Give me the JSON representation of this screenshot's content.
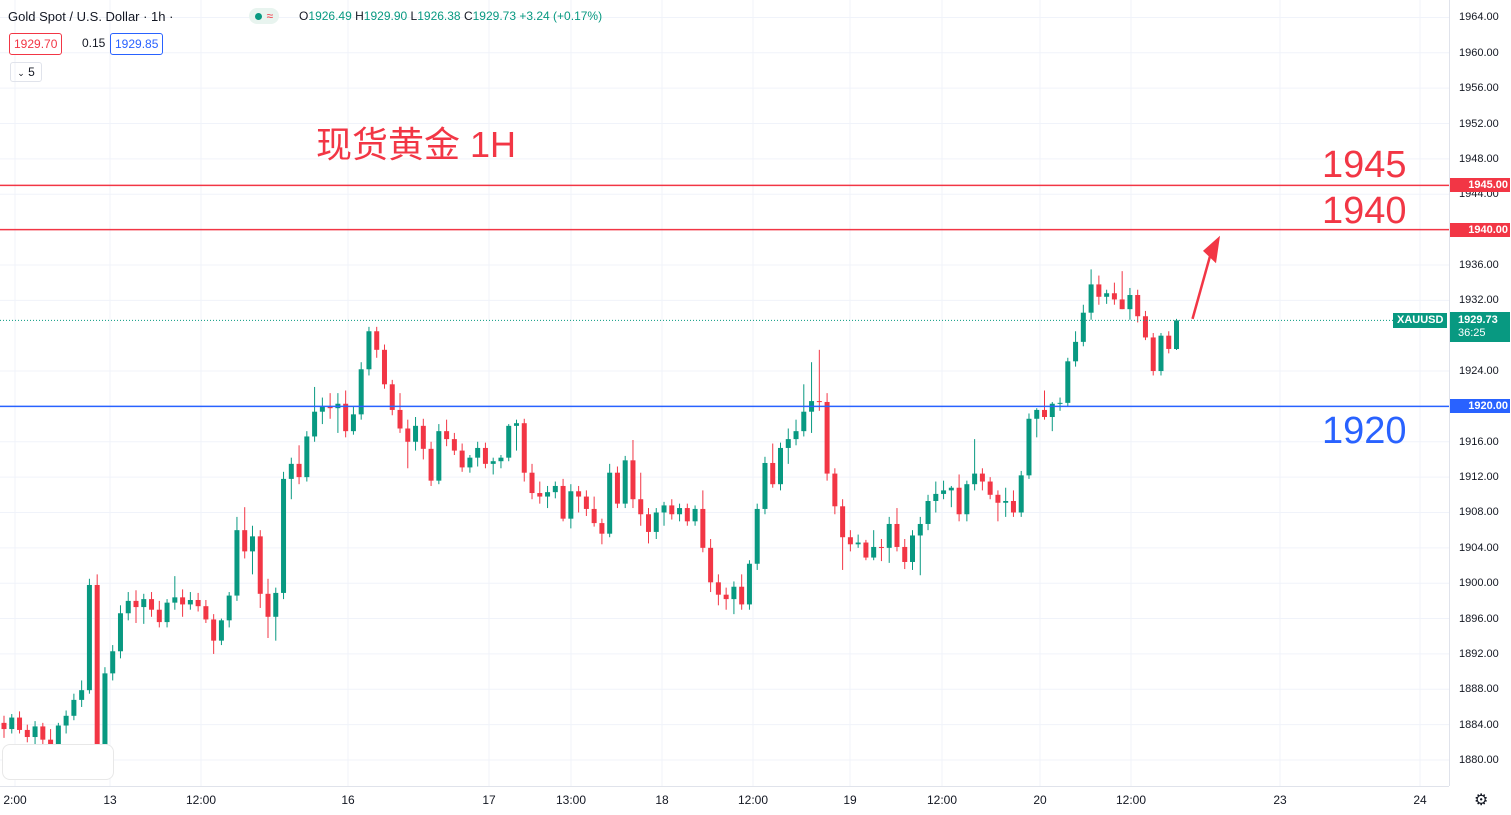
{
  "header": {
    "title": "Gold Spot / U.S. Dollar · 1h ·",
    "ohlc": [
      {
        "k": "O",
        "v": "1926.49"
      },
      {
        "k": "H",
        "v": "1929.90"
      },
      {
        "k": "L",
        "v": "1926.38"
      },
      {
        "k": "C",
        "v": "1929.73"
      },
      {
        "k": "",
        "v": "+3.24 (+0.17%)"
      }
    ],
    "wave_icon": "≈",
    "sell_price": "1929.70",
    "spread": "0.15",
    "buy_price": "1929.85",
    "collapse_label": "5",
    "collapse_icon": "chevron-down-icon"
  },
  "annotations": {
    "title": "现货黄金 1H",
    "level_1945": "1945",
    "level_1940": "1940",
    "level_1920": "1920"
  },
  "colors": {
    "up": "#089981",
    "down": "#f23645",
    "resistance": "#f23645",
    "support": "#2962ff",
    "grid": "#f0f3fa"
  },
  "price_axis": {
    "ticks": [
      "1964.00",
      "1960.00",
      "1956.00",
      "1952.00",
      "1948.00",
      "1944.00",
      "1936.00",
      "1932.00",
      "1924.00",
      "1916.00",
      "1912.00",
      "1908.00",
      "1904.00",
      "1900.00",
      "1896.00",
      "1892.00",
      "1888.00",
      "1884.00",
      "1880.00"
    ],
    "tick_values": [
      1964,
      1960,
      1956,
      1952,
      1948,
      1944,
      1936,
      1932,
      1924,
      1916,
      1912,
      1908,
      1904,
      1900,
      1896,
      1892,
      1888,
      1884,
      1880
    ],
    "labels": [
      {
        "text": "1945.00",
        "value": 1945,
        "color": "#f23645"
      },
      {
        "text": "1940.00",
        "value": 1940,
        "color": "#f23645"
      },
      {
        "text": "1920.00",
        "value": 1920,
        "color": "#2962ff"
      }
    ],
    "current": {
      "symbol": "XAUUSD",
      "price": "1929.73",
      "countdown": "36:25",
      "value": 1929.73
    }
  },
  "time_axis": {
    "ticks": [
      "2:00",
      "13",
      "12:00",
      "16",
      "17",
      "13:00",
      "18",
      "12:00",
      "19",
      "12:00",
      "20",
      "12:00",
      "23",
      "24"
    ]
  },
  "settings_icon": "gear-icon",
  "chart_data": {
    "type": "candlestick",
    "symbol": "Gold Spot / U.S. Dollar",
    "interval": "1h",
    "ylim": [
      1877,
      1965
    ],
    "horizontal_lines": [
      1945,
      1940,
      1920
    ],
    "candles": [
      [
        1884.2,
        1885.0,
        1882.5,
        1883.5
      ],
      [
        1883.5,
        1885.2,
        1883.0,
        1884.8
      ],
      [
        1884.8,
        1885.5,
        1883.0,
        1883.4
      ],
      [
        1883.4,
        1884.0,
        1882.0,
        1882.6
      ],
      [
        1882.6,
        1884.4,
        1881.5,
        1883.8
      ],
      [
        1883.8,
        1884.2,
        1881.8,
        1882.3
      ],
      [
        1882.3,
        1883.5,
        1881.4,
        1881.8
      ],
      [
        1881.8,
        1884.2,
        1881.5,
        1883.9
      ],
      [
        1883.9,
        1885.6,
        1883.0,
        1885.0
      ],
      [
        1885.0,
        1887.5,
        1884.5,
        1886.8
      ],
      [
        1886.8,
        1889.0,
        1886.0,
        1887.9
      ],
      [
        1887.9,
        1900.5,
        1887.5,
        1899.8
      ],
      [
        1899.8,
        1901.0,
        1880.5,
        1881.5
      ],
      [
        1881.5,
        1890.5,
        1880.8,
        1889.8
      ],
      [
        1889.8,
        1893.0,
        1889.0,
        1892.3
      ],
      [
        1892.3,
        1897.5,
        1891.5,
        1896.6
      ],
      [
        1896.6,
        1899.0,
        1895.8,
        1898.0
      ],
      [
        1898.0,
        1899.2,
        1895.5,
        1897.3
      ],
      [
        1897.3,
        1898.8,
        1895.4,
        1898.2
      ],
      [
        1898.2,
        1899.0,
        1896.2,
        1897.0
      ],
      [
        1897.0,
        1898.0,
        1895.0,
        1895.6
      ],
      [
        1895.6,
        1898.2,
        1895.0,
        1897.8
      ],
      [
        1897.8,
        1900.8,
        1897.0,
        1898.4
      ],
      [
        1898.4,
        1899.3,
        1896.2,
        1897.6
      ],
      [
        1897.6,
        1899.0,
        1897.0,
        1898.1
      ],
      [
        1898.1,
        1898.9,
        1896.8,
        1897.4
      ],
      [
        1897.4,
        1898.1,
        1895.5,
        1895.9
      ],
      [
        1895.9,
        1896.5,
        1892.0,
        1893.5
      ],
      [
        1893.5,
        1896.0,
        1893.0,
        1895.8
      ],
      [
        1895.8,
        1899.0,
        1895.0,
        1898.6
      ],
      [
        1898.6,
        1907.5,
        1898.0,
        1906.0
      ],
      [
        1906.0,
        1908.6,
        1902.8,
        1903.6
      ],
      [
        1903.6,
        1906.5,
        1901.0,
        1905.3
      ],
      [
        1905.3,
        1906.0,
        1897.2,
        1898.8
      ],
      [
        1898.8,
        1900.5,
        1893.8,
        1896.2
      ],
      [
        1896.2,
        1899.5,
        1893.5,
        1898.9
      ],
      [
        1898.9,
        1912.6,
        1898.2,
        1911.8
      ],
      [
        1911.8,
        1914.2,
        1909.5,
        1913.5
      ],
      [
        1913.5,
        1915.6,
        1911.2,
        1912.0
      ],
      [
        1912.0,
        1917.2,
        1911.5,
        1916.6
      ],
      [
        1916.6,
        1922.2,
        1916.0,
        1919.4
      ],
      [
        1919.4,
        1921.0,
        1918.0,
        1920.0
      ],
      [
        1920.0,
        1921.5,
        1918.6,
        1919.8
      ],
      [
        1919.8,
        1921.5,
        1917.0,
        1920.3
      ],
      [
        1920.3,
        1921.8,
        1916.5,
        1917.2
      ],
      [
        1917.2,
        1920.0,
        1916.8,
        1919.1
      ],
      [
        1919.1,
        1925.0,
        1918.5,
        1924.2
      ],
      [
        1924.2,
        1929.0,
        1923.5,
        1928.5
      ],
      [
        1928.5,
        1929.0,
        1925.5,
        1926.4
      ],
      [
        1926.4,
        1927.0,
        1922.0,
        1922.5
      ],
      [
        1922.5,
        1923.0,
        1919.0,
        1919.6
      ],
      [
        1919.6,
        1921.5,
        1917.0,
        1917.5
      ],
      [
        1917.5,
        1918.5,
        1913.0,
        1916.0
      ],
      [
        1916.0,
        1918.8,
        1915.0,
        1917.8
      ],
      [
        1917.8,
        1918.6,
        1914.0,
        1915.2
      ],
      [
        1915.2,
        1916.0,
        1911.0,
        1911.6
      ],
      [
        1911.6,
        1918.0,
        1911.2,
        1917.2
      ],
      [
        1917.2,
        1918.5,
        1915.5,
        1916.3
      ],
      [
        1916.3,
        1917.0,
        1914.5,
        1915.0
      ],
      [
        1915.0,
        1915.8,
        1912.6,
        1913.1
      ],
      [
        1913.1,
        1914.5,
        1912.5,
        1914.2
      ],
      [
        1914.2,
        1916.0,
        1913.2,
        1915.3
      ],
      [
        1915.3,
        1915.9,
        1913.0,
        1913.5
      ],
      [
        1913.5,
        1914.2,
        1912.3,
        1913.8
      ],
      [
        1913.8,
        1914.5,
        1913.0,
        1914.2
      ],
      [
        1914.2,
        1918.0,
        1913.8,
        1917.8
      ],
      [
        1917.8,
        1918.5,
        1915.0,
        1918.1
      ],
      [
        1918.1,
        1918.6,
        1911.5,
        1912.5
      ],
      [
        1912.5,
        1913.5,
        1909.5,
        1910.2
      ],
      [
        1910.2,
        1911.5,
        1909.0,
        1909.8
      ],
      [
        1909.8,
        1911.0,
        1908.5,
        1910.3
      ],
      [
        1910.3,
        1911.5,
        1909.6,
        1911.0
      ],
      [
        1911.0,
        1911.8,
        1907.0,
        1907.3
      ],
      [
        1907.3,
        1911.2,
        1906.2,
        1910.4
      ],
      [
        1910.4,
        1911.0,
        1908.0,
        1909.8
      ],
      [
        1909.8,
        1910.5,
        1907.6,
        1908.4
      ],
      [
        1908.4,
        1909.8,
        1906.4,
        1906.8
      ],
      [
        1906.8,
        1907.3,
        1904.4,
        1905.6
      ],
      [
        1905.6,
        1913.5,
        1905.2,
        1912.5
      ],
      [
        1912.5,
        1913.2,
        1908.5,
        1909.0
      ],
      [
        1909.0,
        1914.4,
        1908.5,
        1913.9
      ],
      [
        1913.9,
        1916.2,
        1908.5,
        1909.5
      ],
      [
        1909.5,
        1912.5,
        1906.5,
        1907.8
      ],
      [
        1907.8,
        1908.5,
        1904.5,
        1905.8
      ],
      [
        1905.8,
        1908.5,
        1905.0,
        1908.0
      ],
      [
        1908.0,
        1909.2,
        1906.5,
        1908.8
      ],
      [
        1908.8,
        1909.5,
        1907.2,
        1907.8
      ],
      [
        1907.8,
        1909.0,
        1907.0,
        1908.5
      ],
      [
        1908.5,
        1909.0,
        1906.5,
        1907.0
      ],
      [
        1907.0,
        1908.8,
        1906.5,
        1908.4
      ],
      [
        1908.4,
        1910.5,
        1903.5,
        1904.0
      ],
      [
        1904.0,
        1905.0,
        1899.0,
        1900.1
      ],
      [
        1900.1,
        1901.0,
        1897.5,
        1898.7
      ],
      [
        1898.7,
        1899.5,
        1897.0,
        1898.2
      ],
      [
        1898.2,
        1900.2,
        1896.5,
        1899.6
      ],
      [
        1899.6,
        1901.0,
        1897.0,
        1897.6
      ],
      [
        1897.6,
        1902.6,
        1897.0,
        1902.2
      ],
      [
        1902.2,
        1909.0,
        1901.5,
        1908.4
      ],
      [
        1908.4,
        1914.3,
        1907.8,
        1913.6
      ],
      [
        1913.6,
        1915.8,
        1910.8,
        1911.2
      ],
      [
        1911.2,
        1915.9,
        1910.5,
        1915.3
      ],
      [
        1915.3,
        1917.5,
        1913.5,
        1916.3
      ],
      [
        1916.3,
        1918.5,
        1915.6,
        1917.2
      ],
      [
        1917.2,
        1922.5,
        1916.6,
        1919.4
      ],
      [
        1919.4,
        1925.0,
        1917.0,
        1920.6
      ],
      [
        1920.6,
        1926.4,
        1919.5,
        1920.5
      ],
      [
        1920.5,
        1921.5,
        1911.6,
        1912.4
      ],
      [
        1912.4,
        1913.0,
        1907.8,
        1908.7
      ],
      [
        1908.7,
        1909.5,
        1901.5,
        1905.2
      ],
      [
        1905.2,
        1906.0,
        1903.6,
        1904.4
      ],
      [
        1904.4,
        1905.5,
        1904.0,
        1904.6
      ],
      [
        1904.6,
        1904.9,
        1902.6,
        1902.9
      ],
      [
        1902.9,
        1906.0,
        1902.6,
        1904.1
      ],
      [
        1904.1,
        1905.0,
        1902.5,
        1904.0
      ],
      [
        1904.0,
        1907.5,
        1902.3,
        1906.7
      ],
      [
        1906.7,
        1908.5,
        1903.6,
        1904.1
      ],
      [
        1904.1,
        1905.0,
        1901.6,
        1902.4
      ],
      [
        1902.4,
        1906.0,
        1901.5,
        1905.4
      ],
      [
        1905.4,
        1907.5,
        1900.9,
        1906.7
      ],
      [
        1906.7,
        1910.0,
        1906.0,
        1909.3
      ],
      [
        1909.3,
        1911.5,
        1908.0,
        1910.1
      ],
      [
        1910.1,
        1911.6,
        1909.5,
        1910.5
      ],
      [
        1910.5,
        1911.0,
        1908.6,
        1910.8
      ],
      [
        1910.8,
        1912.3,
        1907.0,
        1907.8
      ],
      [
        1907.8,
        1911.6,
        1907.0,
        1911.2
      ],
      [
        1911.2,
        1916.3,
        1910.5,
        1912.4
      ],
      [
        1912.4,
        1913.0,
        1910.5,
        1911.5
      ],
      [
        1911.5,
        1912.0,
        1909.5,
        1910.0
      ],
      [
        1910.0,
        1910.5,
        1907.0,
        1909.1
      ],
      [
        1909.1,
        1910.8,
        1907.5,
        1909.3
      ],
      [
        1909.3,
        1910.5,
        1907.5,
        1908.0
      ],
      [
        1908.0,
        1912.7,
        1907.5,
        1912.2
      ],
      [
        1912.2,
        1919.2,
        1911.8,
        1918.6
      ],
      [
        1918.6,
        1919.8,
        1916.5,
        1919.6
      ],
      [
        1919.6,
        1921.8,
        1918.5,
        1918.8
      ],
      [
        1918.8,
        1920.5,
        1917.2,
        1920.3
      ],
      [
        1920.3,
        1921.0,
        1919.5,
        1920.4
      ],
      [
        1920.4,
        1925.5,
        1920.0,
        1925.1
      ],
      [
        1925.1,
        1928.5,
        1924.5,
        1927.3
      ],
      [
        1927.3,
        1931.5,
        1926.8,
        1930.6
      ],
      [
        1930.6,
        1935.5,
        1929.8,
        1933.8
      ],
      [
        1933.8,
        1934.8,
        1931.5,
        1932.4
      ],
      [
        1932.4,
        1933.2,
        1931.6,
        1932.8
      ],
      [
        1932.8,
        1934.0,
        1931.5,
        1932.1
      ],
      [
        1932.1,
        1935.3,
        1931.0,
        1931.0
      ],
      [
        1931.0,
        1933.4,
        1929.8,
        1932.6
      ],
      [
        1932.6,
        1933.2,
        1929.5,
        1930.2
      ],
      [
        1930.2,
        1930.8,
        1927.5,
        1927.8
      ],
      [
        1927.8,
        1928.3,
        1923.5,
        1924.0
      ],
      [
        1924.0,
        1928.3,
        1923.5,
        1928.0
      ],
      [
        1928.0,
        1928.5,
        1926.0,
        1926.5
      ],
      [
        1926.49,
        1929.9,
        1926.38,
        1929.73
      ]
    ]
  }
}
